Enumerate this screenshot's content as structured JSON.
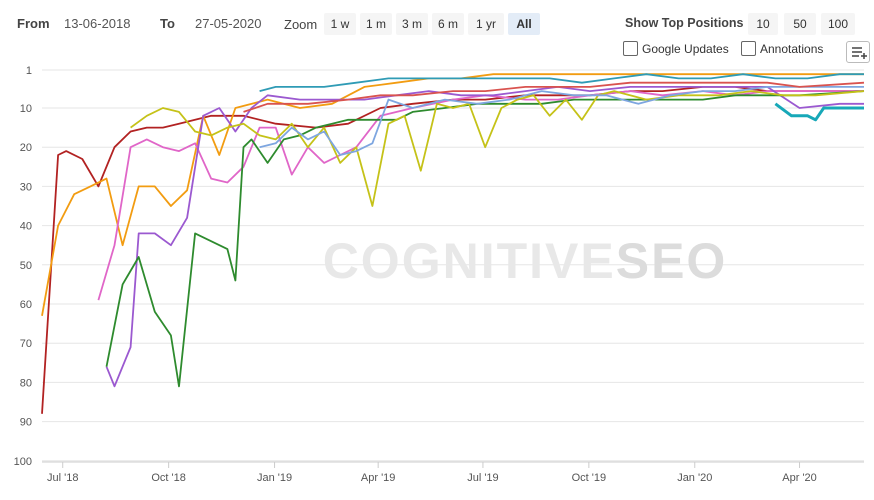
{
  "range": {
    "from_label": "From",
    "from_value": "13-06-2018",
    "to_label": "To",
    "to_value": "27-05-2020"
  },
  "zoom": {
    "label": "Zoom",
    "buttons": [
      "1 w",
      "1 m",
      "3 m",
      "6 m",
      "1 yr",
      "All"
    ],
    "active": "All"
  },
  "top_positions": {
    "label": "Show Top Positions",
    "buttons": [
      "10",
      "50",
      "100"
    ]
  },
  "options": {
    "google_updates": "Google Updates",
    "annotations": "Annotations"
  },
  "icons": {
    "menu": "chart-menu-icon"
  },
  "watermark": {
    "light": "COGNITIVE",
    "bold": "SEO"
  },
  "chart_data": {
    "type": "line",
    "y_reversed": true,
    "ylim": [
      1,
      100
    ],
    "y_ticks": [
      1,
      10,
      20,
      30,
      40,
      50,
      60,
      70,
      80,
      90,
      100
    ],
    "x_ticks": [
      {
        "label": "Jul '18",
        "date": "2018-07-01"
      },
      {
        "label": "Oct '18",
        "date": "2018-10-01"
      },
      {
        "label": "Jan '19",
        "date": "2019-01-01"
      },
      {
        "label": "Apr '19",
        "date": "2019-04-01"
      },
      {
        "label": "Jul '19",
        "date": "2019-07-01"
      },
      {
        "label": "Oct '19",
        "date": "2019-10-01"
      },
      {
        "label": "Jan '20",
        "date": "2020-01-01"
      },
      {
        "label": "Apr '20",
        "date": "2020-04-01"
      }
    ],
    "xlim": [
      "2018-06-13",
      "2020-05-27"
    ],
    "grid": true,
    "series": [
      {
        "color": "#b22222",
        "points": [
          [
            "2018-06-13",
            88
          ],
          [
            "2018-06-27",
            22
          ],
          [
            "2018-07-04",
            21
          ],
          [
            "2018-07-18",
            23
          ],
          [
            "2018-08-01",
            30
          ],
          [
            "2018-08-15",
            20
          ],
          [
            "2018-08-29",
            16
          ],
          [
            "2018-09-12",
            15
          ],
          [
            "2018-09-26",
            15
          ],
          [
            "2018-10-10",
            14
          ],
          [
            "2018-10-24",
            13
          ],
          [
            "2018-11-07",
            12
          ],
          [
            "2018-12-05",
            12
          ],
          [
            "2019-01-02",
            14
          ],
          [
            "2019-02-06",
            15
          ],
          [
            "2019-03-06",
            14
          ],
          [
            "2019-04-03",
            10
          ],
          [
            "2019-05-01",
            9
          ],
          [
            "2019-06-05",
            8
          ],
          [
            "2019-07-03",
            8
          ],
          [
            "2019-08-07",
            7
          ],
          [
            "2019-09-04",
            7
          ],
          [
            "2019-10-02",
            7
          ],
          [
            "2019-11-06",
            6
          ],
          [
            "2019-12-04",
            6
          ],
          [
            "2020-01-08",
            5
          ],
          [
            "2020-02-05",
            5
          ],
          [
            "2020-03-04",
            6
          ],
          [
            "2020-04-01",
            6
          ],
          [
            "2020-05-06",
            6
          ],
          [
            "2020-05-27",
            6
          ]
        ]
      },
      {
        "color": "#f29c11",
        "points": [
          [
            "2018-06-13",
            63
          ],
          [
            "2018-06-27",
            40
          ],
          [
            "2018-07-11",
            32
          ],
          [
            "2018-07-25",
            30
          ],
          [
            "2018-08-08",
            28
          ],
          [
            "2018-08-22",
            45
          ],
          [
            "2018-09-05",
            30
          ],
          [
            "2018-09-19",
            30
          ],
          [
            "2018-10-03",
            35
          ],
          [
            "2018-10-17",
            31
          ],
          [
            "2018-10-31",
            12
          ],
          [
            "2018-11-14",
            22
          ],
          [
            "2018-11-28",
            10
          ],
          [
            "2018-12-26",
            8
          ],
          [
            "2019-01-23",
            10
          ],
          [
            "2019-02-20",
            9
          ],
          [
            "2019-03-20",
            5
          ],
          [
            "2019-04-17",
            4
          ],
          [
            "2019-05-15",
            3
          ],
          [
            "2019-06-12",
            3
          ],
          [
            "2019-07-10",
            2
          ],
          [
            "2019-08-07",
            2
          ],
          [
            "2019-09-04",
            2
          ],
          [
            "2019-10-02",
            2
          ],
          [
            "2019-11-06",
            2
          ],
          [
            "2019-12-04",
            2
          ],
          [
            "2020-01-08",
            2
          ],
          [
            "2020-02-05",
            2
          ],
          [
            "2020-03-04",
            2
          ],
          [
            "2020-04-08",
            2
          ],
          [
            "2020-05-27",
            2
          ]
        ]
      },
      {
        "color": "#e066c8",
        "points": [
          [
            "2018-08-01",
            59
          ],
          [
            "2018-08-15",
            45
          ],
          [
            "2018-08-29",
            20
          ],
          [
            "2018-09-12",
            18
          ],
          [
            "2018-09-26",
            20
          ],
          [
            "2018-10-10",
            21
          ],
          [
            "2018-10-24",
            19
          ],
          [
            "2018-11-07",
            28
          ],
          [
            "2018-11-21",
            29
          ],
          [
            "2018-12-05",
            25
          ],
          [
            "2018-12-19",
            15
          ],
          [
            "2019-01-02",
            15
          ],
          [
            "2019-01-16",
            27
          ],
          [
            "2019-01-30",
            20
          ],
          [
            "2019-02-13",
            24
          ],
          [
            "2019-02-27",
            22
          ],
          [
            "2019-03-13",
            20
          ],
          [
            "2019-04-03",
            12
          ],
          [
            "2019-05-01",
            10
          ],
          [
            "2019-06-05",
            8
          ],
          [
            "2019-07-03",
            7
          ],
          [
            "2019-08-07",
            8
          ],
          [
            "2019-09-04",
            8
          ],
          [
            "2019-10-02",
            7
          ],
          [
            "2019-11-06",
            6
          ],
          [
            "2019-12-04",
            7
          ],
          [
            "2020-01-08",
            6
          ],
          [
            "2020-02-05",
            7
          ],
          [
            "2020-03-04",
            6
          ],
          [
            "2020-04-01",
            6
          ],
          [
            "2020-05-27",
            6
          ]
        ]
      },
      {
        "color": "#9b59d0",
        "points": [
          [
            "2018-08-08",
            76
          ],
          [
            "2018-08-15",
            81
          ],
          [
            "2018-08-29",
            71
          ],
          [
            "2018-09-05",
            42
          ],
          [
            "2018-09-19",
            42
          ],
          [
            "2018-10-03",
            45
          ],
          [
            "2018-10-17",
            38
          ],
          [
            "2018-10-31",
            12
          ],
          [
            "2018-11-14",
            10
          ],
          [
            "2018-11-28",
            16
          ],
          [
            "2018-12-12",
            10
          ],
          [
            "2018-12-26",
            7
          ],
          [
            "2019-01-23",
            8
          ],
          [
            "2019-02-20",
            8
          ],
          [
            "2019-03-20",
            8
          ],
          [
            "2019-04-17",
            7
          ],
          [
            "2019-05-15",
            6
          ],
          [
            "2019-06-12",
            7
          ],
          [
            "2019-07-10",
            7
          ],
          [
            "2019-08-07",
            6
          ],
          [
            "2019-09-04",
            5
          ],
          [
            "2019-10-02",
            6
          ],
          [
            "2019-11-06",
            5
          ],
          [
            "2019-12-04",
            5
          ],
          [
            "2020-01-08",
            5
          ],
          [
            "2020-02-05",
            5
          ],
          [
            "2020-03-04",
            5
          ],
          [
            "2020-04-01",
            10
          ],
          [
            "2020-05-06",
            9
          ],
          [
            "2020-05-27",
            9
          ]
        ]
      },
      {
        "color": "#2e8b2e",
        "points": [
          [
            "2018-08-08",
            76
          ],
          [
            "2018-08-22",
            55
          ],
          [
            "2018-09-05",
            48
          ],
          [
            "2018-09-19",
            62
          ],
          [
            "2018-10-03",
            68
          ],
          [
            "2018-10-10",
            81
          ],
          [
            "2018-10-24",
            42
          ],
          [
            "2018-11-21",
            46
          ],
          [
            "2018-11-28",
            54
          ],
          [
            "2018-12-05",
            20
          ],
          [
            "2018-12-12",
            18
          ],
          [
            "2018-12-26",
            24
          ],
          [
            "2019-01-09",
            18
          ],
          [
            "2019-01-23",
            17
          ],
          [
            "2019-02-06",
            15
          ],
          [
            "2019-02-20",
            14
          ],
          [
            "2019-03-06",
            13
          ],
          [
            "2019-03-20",
            13
          ],
          [
            "2019-04-03",
            13
          ],
          [
            "2019-04-17",
            13
          ],
          [
            "2019-05-01",
            11
          ],
          [
            "2019-05-29",
            10
          ],
          [
            "2019-06-26",
            9
          ],
          [
            "2019-07-24",
            9
          ],
          [
            "2019-08-21",
            9
          ],
          [
            "2019-09-18",
            8
          ],
          [
            "2019-10-16",
            8
          ],
          [
            "2019-11-13",
            8
          ],
          [
            "2019-12-11",
            8
          ],
          [
            "2020-01-08",
            8
          ],
          [
            "2020-02-05",
            7
          ],
          [
            "2020-03-04",
            7
          ],
          [
            "2020-04-01",
            7
          ],
          [
            "2020-05-27",
            6
          ]
        ]
      },
      {
        "color": "#c5c218",
        "points": [
          [
            "2018-08-29",
            15
          ],
          [
            "2018-09-12",
            12
          ],
          [
            "2018-09-26",
            10
          ],
          [
            "2018-10-10",
            11
          ],
          [
            "2018-10-24",
            16
          ],
          [
            "2018-11-07",
            17
          ],
          [
            "2018-11-21",
            15
          ],
          [
            "2018-12-05",
            14
          ],
          [
            "2018-12-19",
            17
          ],
          [
            "2019-01-02",
            18
          ],
          [
            "2019-01-16",
            14
          ],
          [
            "2019-01-30",
            20
          ],
          [
            "2019-02-13",
            15
          ],
          [
            "2019-02-27",
            24
          ],
          [
            "2019-03-13",
            20
          ],
          [
            "2019-03-27",
            35
          ],
          [
            "2019-04-10",
            14
          ],
          [
            "2019-04-24",
            12
          ],
          [
            "2019-05-08",
            26
          ],
          [
            "2019-05-22",
            9
          ],
          [
            "2019-06-05",
            10
          ],
          [
            "2019-06-19",
            9
          ],
          [
            "2019-07-03",
            20
          ],
          [
            "2019-07-17",
            10
          ],
          [
            "2019-07-31",
            8
          ],
          [
            "2019-08-14",
            7
          ],
          [
            "2019-08-28",
            12
          ],
          [
            "2019-09-11",
            8
          ],
          [
            "2019-09-25",
            13
          ],
          [
            "2019-10-09",
            7
          ],
          [
            "2019-10-23",
            6
          ],
          [
            "2019-11-20",
            8
          ],
          [
            "2019-12-18",
            7
          ],
          [
            "2020-01-22",
            7
          ],
          [
            "2020-02-19",
            6
          ],
          [
            "2020-03-18",
            7
          ],
          [
            "2020-04-15",
            7
          ],
          [
            "2020-05-27",
            6
          ]
        ]
      },
      {
        "color": "#7ea6e0",
        "points": [
          [
            "2018-12-19",
            20
          ],
          [
            "2019-01-02",
            19
          ],
          [
            "2019-01-16",
            15
          ],
          [
            "2019-01-30",
            18
          ],
          [
            "2019-02-13",
            16
          ],
          [
            "2019-02-27",
            22
          ],
          [
            "2019-03-13",
            21
          ],
          [
            "2019-03-27",
            19
          ],
          [
            "2019-04-10",
            8
          ],
          [
            "2019-05-01",
            10
          ],
          [
            "2019-05-29",
            8
          ],
          [
            "2019-06-26",
            9
          ],
          [
            "2019-07-24",
            8
          ],
          [
            "2019-08-21",
            6
          ],
          [
            "2019-09-18",
            7
          ],
          [
            "2019-10-16",
            7
          ],
          [
            "2019-11-13",
            9
          ],
          [
            "2019-12-11",
            7
          ],
          [
            "2020-01-08",
            6
          ],
          [
            "2020-02-05",
            6
          ],
          [
            "2020-03-04",
            5
          ],
          [
            "2020-04-01",
            5
          ],
          [
            "2020-05-27",
            5
          ]
        ]
      },
      {
        "color": "#2f9bb5",
        "points": [
          [
            "2018-12-19",
            6
          ],
          [
            "2019-01-02",
            5
          ],
          [
            "2019-01-16",
            5
          ],
          [
            "2019-02-13",
            5
          ],
          [
            "2019-03-13",
            4
          ],
          [
            "2019-04-10",
            3
          ],
          [
            "2019-05-08",
            3
          ],
          [
            "2019-06-05",
            3
          ],
          [
            "2019-07-03",
            3
          ],
          [
            "2019-07-31",
            3
          ],
          [
            "2019-08-28",
            3
          ],
          [
            "2019-09-25",
            4
          ],
          [
            "2019-10-23",
            3
          ],
          [
            "2019-11-20",
            2
          ],
          [
            "2019-12-18",
            3
          ],
          [
            "2020-01-15",
            3
          ],
          [
            "2020-02-12",
            2
          ],
          [
            "2020-03-11",
            3
          ],
          [
            "2020-04-08",
            3
          ],
          [
            "2020-05-06",
            2
          ],
          [
            "2020-05-27",
            2
          ]
        ]
      },
      {
        "color": "#17a8b8",
        "points": [
          [
            "2020-03-11",
            9
          ],
          [
            "2020-03-25",
            12
          ],
          [
            "2020-04-08",
            12
          ],
          [
            "2020-04-15",
            13
          ],
          [
            "2020-04-22",
            10
          ],
          [
            "2020-05-06",
            10
          ],
          [
            "2020-05-27",
            10
          ]
        ]
      },
      {
        "color": "#d9534f",
        "points": [
          [
            "2018-12-05",
            11
          ],
          [
            "2018-12-26",
            9
          ],
          [
            "2019-01-30",
            9
          ],
          [
            "2019-03-06",
            8
          ],
          [
            "2019-04-03",
            7
          ],
          [
            "2019-05-01",
            7
          ],
          [
            "2019-06-05",
            6
          ],
          [
            "2019-07-03",
            6
          ],
          [
            "2019-08-07",
            5
          ],
          [
            "2019-09-04",
            5
          ],
          [
            "2019-10-02",
            5
          ],
          [
            "2019-11-06",
            4
          ],
          [
            "2019-12-04",
            4
          ],
          [
            "2020-01-08",
            4
          ],
          [
            "2020-02-05",
            4
          ],
          [
            "2020-03-04",
            4
          ],
          [
            "2020-04-01",
            5
          ],
          [
            "2020-05-27",
            4
          ]
        ]
      }
    ]
  }
}
